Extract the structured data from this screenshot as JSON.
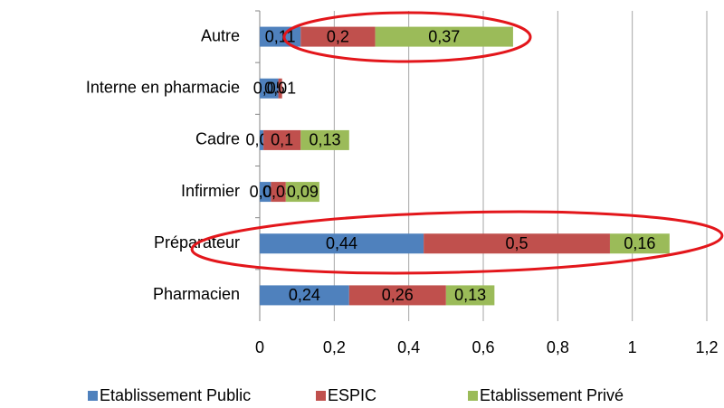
{
  "chart_data": {
    "type": "stacked_bar_horizontal",
    "categories": [
      "Autre",
      "Interne en pharmacie",
      "Cadre",
      "Infirmier",
      "Préparateur",
      "Pharmacien"
    ],
    "series": [
      {
        "name": "Etablissement Public",
        "color": "#4f81bd",
        "values": [
          0.11,
          0.05,
          0.01,
          0.03,
          0.44,
          0.24
        ],
        "value_labels": [
          "0,11",
          "0,05",
          "0,01",
          "0,03",
          "0,44",
          "0,24"
        ]
      },
      {
        "name": "ESPIC",
        "color": "#c0504d",
        "values": [
          0.2,
          0.01,
          0.1,
          0.04,
          0.5,
          0.26
        ],
        "value_labels": [
          "0,2",
          "0,01",
          "0,1",
          "0,04",
          "0,5",
          "0,26"
        ]
      },
      {
        "name": "Etablissement Privé",
        "color": "#9bbb59",
        "values": [
          0.37,
          null,
          0.13,
          0.09,
          0.16,
          0.13
        ],
        "value_labels": [
          "0,37",
          null,
          "0,13",
          "0,09",
          "0,16",
          "0,13"
        ]
      }
    ],
    "xlim": [
      0,
      1.2
    ],
    "xticks": [
      0,
      {
        "value": 0.2,
        "label": "0,2"
      },
      {
        "value": 0.4,
        "label": "0,4"
      },
      {
        "value": 0.6,
        "label": "0,6"
      },
      {
        "value": 0.8,
        "label": "0,8"
      },
      1,
      {
        "value": 1.2,
        "label": "1,2"
      }
    ],
    "grid": true,
    "legend": "bottom"
  }
}
